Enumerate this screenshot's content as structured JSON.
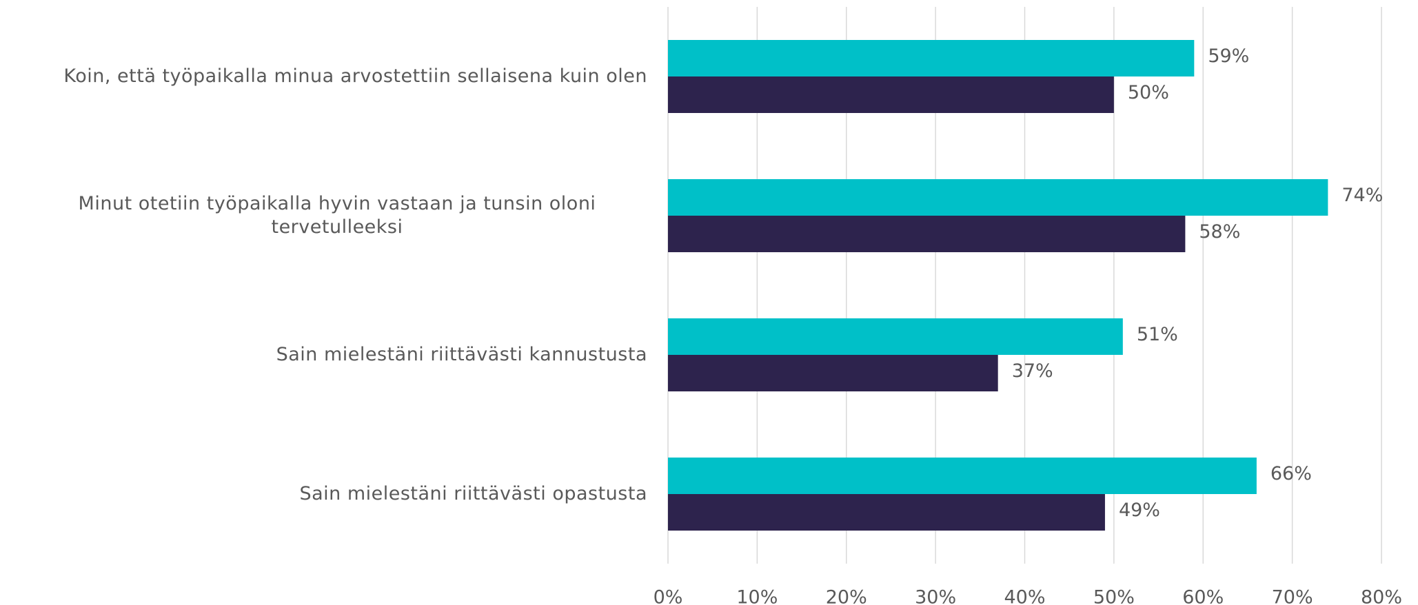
{
  "chart_data": {
    "type": "bar",
    "orientation": "horizontal",
    "categories": [
      "Koin, että työpaikalla minua arvostettiin sellaisena kuin olen",
      "Minut otetiin työpaikalla hyvin vastaan ja tunsin oloni tervetulleeksi",
      "Sain mielestäni riittävästi kannustusta",
      "Sain mielestäni riittävästi opastusta"
    ],
    "series": [
      {
        "color": "#00c0c8",
        "values": [
          59,
          74,
          51,
          66
        ],
        "value_labels": [
          "59%",
          "74%",
          "51%",
          "66%"
        ]
      },
      {
        "color": "#2d234d",
        "values": [
          50,
          58,
          37,
          49
        ],
        "value_labels": [
          "50%",
          "58%",
          "37%",
          "49%"
        ]
      }
    ],
    "xlim": [
      0,
      80
    ],
    "xticks": [
      {
        "value": 0,
        "label": "0%"
      },
      {
        "value": 10,
        "label": "10%"
      },
      {
        "value": 20,
        "label": "20%"
      },
      {
        "value": 30,
        "label": "30%"
      },
      {
        "value": 40,
        "label": "40%"
      },
      {
        "value": 50,
        "label": "50%"
      },
      {
        "value": 60,
        "label": "60%"
      },
      {
        "value": 70,
        "label": "70%"
      },
      {
        "value": 80,
        "label": "80%"
      }
    ],
    "grid": true
  }
}
